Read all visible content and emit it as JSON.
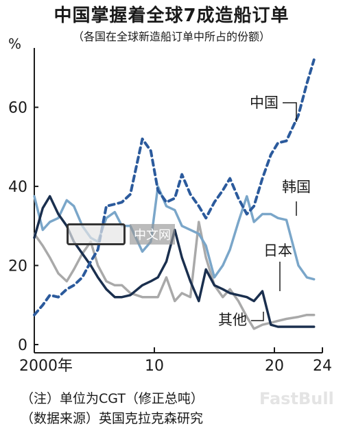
{
  "title": "中国掌握着全球7成造船订单",
  "subtitle": "（各国在全球新造船订单中所占的份额）",
  "unit": "%",
  "notes": [
    "（注）单位为CGT（修正总吨）",
    "（数据来源）英国克拉克森研究"
  ],
  "watermark": {
    "text": "中文网",
    "logo_name": "nikkei-logo",
    "brand": "FastBull"
  },
  "chart_data": {
    "type": "line",
    "title": "中国掌握着全球7成造船订单",
    "subtitle": "（各国在全球新造船订单中所占的份额）",
    "ylabel": "%",
    "xlabel": "",
    "xlim": [
      2000,
      2024
    ],
    "ylim": [
      0,
      75
    ],
    "x_ticks": [
      {
        "value": 2000,
        "label": "2000年"
      },
      {
        "value": 2010,
        "label": "10"
      },
      {
        "value": 2020,
        "label": "20"
      },
      {
        "value": 2024,
        "label": "24"
      }
    ],
    "y_ticks": [
      {
        "value": 0,
        "label": "0"
      },
      {
        "value": 20,
        "label": "20"
      },
      {
        "value": 40,
        "label": "40"
      },
      {
        "value": 60,
        "label": "60"
      }
    ],
    "grid": false,
    "legend": "inline labels",
    "series": [
      {
        "name": "中国",
        "color": "#2b5a9c",
        "style": "dashed",
        "points": [
          [
            2000,
            7.5
          ],
          [
            2000.7,
            10
          ],
          [
            2001.3,
            12.5
          ],
          [
            2002,
            12
          ],
          [
            2002.7,
            14
          ],
          [
            2003.3,
            15
          ],
          [
            2004,
            17
          ],
          [
            2004.7,
            21
          ],
          [
            2005.3,
            24
          ],
          [
            2006,
            35
          ],
          [
            2006.7,
            35.5
          ],
          [
            2007.3,
            36
          ],
          [
            2008,
            38
          ],
          [
            2009,
            52
          ],
          [
            2009.7,
            49
          ],
          [
            2010.3,
            39
          ],
          [
            2011,
            36
          ],
          [
            2011.7,
            37
          ],
          [
            2012.3,
            43
          ],
          [
            2013,
            38
          ],
          [
            2013.7,
            35
          ],
          [
            2014.3,
            32
          ],
          [
            2015,
            36
          ],
          [
            2015.7,
            39
          ],
          [
            2016.3,
            42
          ],
          [
            2017,
            37
          ],
          [
            2017.7,
            33
          ],
          [
            2018.3,
            35
          ],
          [
            2019,
            42
          ],
          [
            2019.7,
            48
          ],
          [
            2020.3,
            51
          ],
          [
            2021,
            51.5
          ],
          [
            2022,
            58
          ],
          [
            2022.7,
            66
          ],
          [
            2023.3,
            72
          ]
        ]
      },
      {
        "name": "韩国",
        "color": "#7aa6c9",
        "style": "solid",
        "points": [
          [
            2000,
            37.5
          ],
          [
            2000.7,
            29
          ],
          [
            2001.3,
            31
          ],
          [
            2002,
            32
          ],
          [
            2002.7,
            36.5
          ],
          [
            2003.3,
            35
          ],
          [
            2004,
            30
          ],
          [
            2004.7,
            27
          ],
          [
            2005.3,
            26
          ],
          [
            2006,
            32
          ],
          [
            2006.7,
            33.5
          ],
          [
            2007.3,
            30
          ],
          [
            2008,
            30
          ],
          [
            2009,
            23.5
          ],
          [
            2009.7,
            26
          ],
          [
            2010.3,
            40
          ],
          [
            2011,
            35
          ],
          [
            2011.7,
            34
          ],
          [
            2012.3,
            30
          ],
          [
            2013,
            29
          ],
          [
            2013.7,
            28
          ],
          [
            2014.3,
            25
          ],
          [
            2015,
            17
          ],
          [
            2015.7,
            20
          ],
          [
            2016.3,
            24
          ],
          [
            2017,
            31
          ],
          [
            2017.7,
            37.5
          ],
          [
            2018.3,
            31
          ],
          [
            2019,
            33
          ],
          [
            2019.7,
            33
          ],
          [
            2020.3,
            32
          ],
          [
            2021,
            31.5
          ],
          [
            2022,
            20
          ],
          [
            2022.7,
            17
          ],
          [
            2023.3,
            16.5
          ]
        ]
      },
      {
        "name": "日本",
        "color": "#1a2f4e",
        "style": "solid",
        "points": [
          [
            2000,
            27
          ],
          [
            2000.7,
            34.5
          ],
          [
            2001.3,
            37.5
          ],
          [
            2002,
            33
          ],
          [
            2002.7,
            30
          ],
          [
            2003.3,
            26
          ],
          [
            2004,
            23
          ],
          [
            2004.7,
            20
          ],
          [
            2005.3,
            17
          ],
          [
            2006,
            14
          ],
          [
            2006.7,
            12
          ],
          [
            2007.3,
            12
          ],
          [
            2008,
            12.5
          ],
          [
            2009,
            15
          ],
          [
            2009.7,
            16
          ],
          [
            2010.3,
            17
          ],
          [
            2011,
            21
          ],
          [
            2011.7,
            29
          ],
          [
            2012.3,
            22
          ],
          [
            2013,
            16
          ],
          [
            2013.7,
            11
          ],
          [
            2014.3,
            19
          ],
          [
            2015,
            15
          ],
          [
            2015.7,
            14
          ],
          [
            2016.3,
            13
          ],
          [
            2017,
            12.5
          ],
          [
            2017.7,
            12
          ],
          [
            2018.3,
            11
          ],
          [
            2019,
            13.5
          ],
          [
            2019.7,
            5
          ],
          [
            2020.3,
            4.5
          ],
          [
            2021,
            4.5
          ],
          [
            2022,
            4.5
          ],
          [
            2022.7,
            4.5
          ],
          [
            2023.3,
            4.5
          ]
        ]
      },
      {
        "name": "其他",
        "color": "#a9a9a9",
        "style": "solid",
        "points": [
          [
            2000,
            28
          ],
          [
            2000.7,
            25
          ],
          [
            2001.3,
            22
          ],
          [
            2002,
            18
          ],
          [
            2002.7,
            16
          ],
          [
            2003.3,
            19
          ],
          [
            2004,
            23
          ],
          [
            2004.7,
            26
          ],
          [
            2005.3,
            20
          ],
          [
            2006,
            16
          ],
          [
            2006.7,
            15
          ],
          [
            2007.3,
            15
          ],
          [
            2008,
            13
          ],
          [
            2009,
            12
          ],
          [
            2009.7,
            12
          ],
          [
            2010.3,
            12
          ],
          [
            2011,
            17
          ],
          [
            2011.7,
            11
          ],
          [
            2012.3,
            13
          ],
          [
            2013,
            12
          ],
          [
            2013.7,
            31
          ],
          [
            2014.3,
            22
          ],
          [
            2015,
            15
          ],
          [
            2015.7,
            12
          ],
          [
            2016.3,
            14
          ],
          [
            2017,
            11
          ],
          [
            2017.7,
            7
          ],
          [
            2018.3,
            4
          ],
          [
            2019,
            5
          ],
          [
            2019.7,
            5.5
          ],
          [
            2020.3,
            6
          ],
          [
            2021,
            6.5
          ],
          [
            2022,
            7
          ],
          [
            2022.7,
            7.5
          ],
          [
            2023.3,
            7.5
          ]
        ]
      }
    ]
  }
}
